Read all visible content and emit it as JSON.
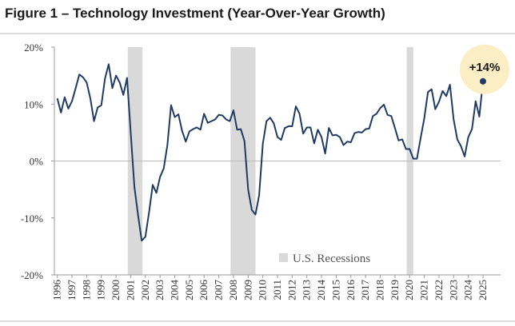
{
  "chart_data": {
    "type": "line",
    "title": "Figure 1 – Technology Investment (Year-Over-Year Growth)",
    "x": [
      1996,
      1996.25,
      1996.5,
      1996.75,
      1997,
      1997.25,
      1997.5,
      1997.75,
      1998,
      1998.25,
      1998.5,
      1998.75,
      1999,
      1999.25,
      1999.5,
      1999.75,
      2000,
      2000.25,
      2000.5,
      2000.75,
      2001,
      2001.25,
      2001.5,
      2001.75,
      2002,
      2002.25,
      2002.5,
      2002.75,
      2003,
      2003.25,
      2003.5,
      2003.75,
      2004,
      2004.25,
      2004.5,
      2004.75,
      2005,
      2005.25,
      2005.5,
      2005.75,
      2006,
      2006.25,
      2006.5,
      2006.75,
      2007,
      2007.25,
      2007.5,
      2007.75,
      2008,
      2008.25,
      2008.5,
      2008.75,
      2009,
      2009.25,
      2009.5,
      2009.75,
      2010,
      2010.25,
      2010.5,
      2010.75,
      2011,
      2011.25,
      2011.5,
      2011.75,
      2012,
      2012.25,
      2012.5,
      2012.75,
      2013,
      2013.25,
      2013.5,
      2013.75,
      2014,
      2014.25,
      2014.5,
      2014.75,
      2015,
      2015.25,
      2015.5,
      2015.75,
      2016,
      2016.25,
      2016.5,
      2016.75,
      2017,
      2017.25,
      2017.5,
      2017.75,
      2018,
      2018.25,
      2018.5,
      2018.75,
      2019,
      2019.25,
      2019.5,
      2019.75,
      2020,
      2020.25,
      2020.5,
      2020.75,
      2021,
      2021.25,
      2021.5,
      2021.75,
      2022,
      2022.25,
      2022.5,
      2022.75,
      2023,
      2023.25,
      2023.5,
      2023.75,
      2024,
      2024.25,
      2024.5,
      2024.75,
      2025
    ],
    "values": [
      11,
      8.5,
      11.2,
      9.2,
      10.5,
      12.8,
      15.2,
      14.7,
      13.8,
      11,
      7,
      9.4,
      9.8,
      14.5,
      17,
      12.8,
      15,
      13.8,
      11.6,
      14.6,
      5,
      -4.5,
      -9.5,
      -14,
      -13.3,
      -9,
      -4.2,
      -5.6,
      -2.8,
      -1.3,
      2.8,
      9.8,
      7.7,
      8.2,
      5.3,
      3.4,
      5.2,
      5.6,
      5.9,
      5.5,
      8.3,
      6.7,
      7,
      7.3,
      8.1,
      8,
      7.3,
      7,
      8.9,
      5.5,
      5.6,
      3.5,
      -5,
      -8.6,
      -9.4,
      -6,
      3,
      7,
      7.6,
      6.6,
      4.2,
      3.7,
      5.8,
      6.1,
      6.1,
      9.6,
      8.3,
      4.8,
      5.9,
      5.9,
      3.1,
      5.5,
      4.2,
      1.3,
      5.8,
      4.5,
      4.6,
      4.2,
      2.8,
      3.4,
      3.3,
      4.9,
      5.1,
      5,
      5.6,
      5.7,
      7.9,
      8.3,
      9.3,
      9.9,
      8.1,
      7.9,
      5.8,
      3.6,
      3.8,
      2.1,
      2.1,
      0.4,
      0.4,
      4,
      7.5,
      12.1,
      12.6,
      9.1,
      10.4,
      12.3,
      11.4,
      13.4,
      7.3,
      3.8,
      2.6,
      0.8,
      4.2,
      5.6,
      10.5,
      7.8,
      14
    ],
    "color": "#1f3b63",
    "xlim": [
      1995.8,
      2026.2
    ],
    "xticks": [
      1996,
      1997,
      1998,
      1999,
      2000,
      2001,
      2002,
      2003,
      2004,
      2005,
      2006,
      2007,
      2008,
      2009,
      2010,
      2011,
      2012,
      2013,
      2014,
      2015,
      2016,
      2017,
      2018,
      2019,
      2020,
      2021,
      2022,
      2023,
      2024,
      2025
    ],
    "ylim": [
      -20,
      20
    ],
    "yticks": [
      {
        "value": 20,
        "label": "20%"
      },
      {
        "value": 10,
        "label": "10%"
      },
      {
        "value": 0,
        "label": "0%"
      },
      {
        "value": -10,
        "label": "-10%"
      },
      {
        "value": -20,
        "label": "-20%"
      }
    ],
    "recessions": {
      "label": "U.S. Recessions",
      "color": "#d9d9d9",
      "periods": [
        [
          2000.8,
          2001.8
        ],
        [
          2007.8,
          2009.5
        ],
        [
          2019.8,
          2020.25
        ]
      ]
    },
    "annotation": {
      "x": 2025,
      "value": 14,
      "label": "+14%",
      "color": "#fbeec4"
    }
  }
}
